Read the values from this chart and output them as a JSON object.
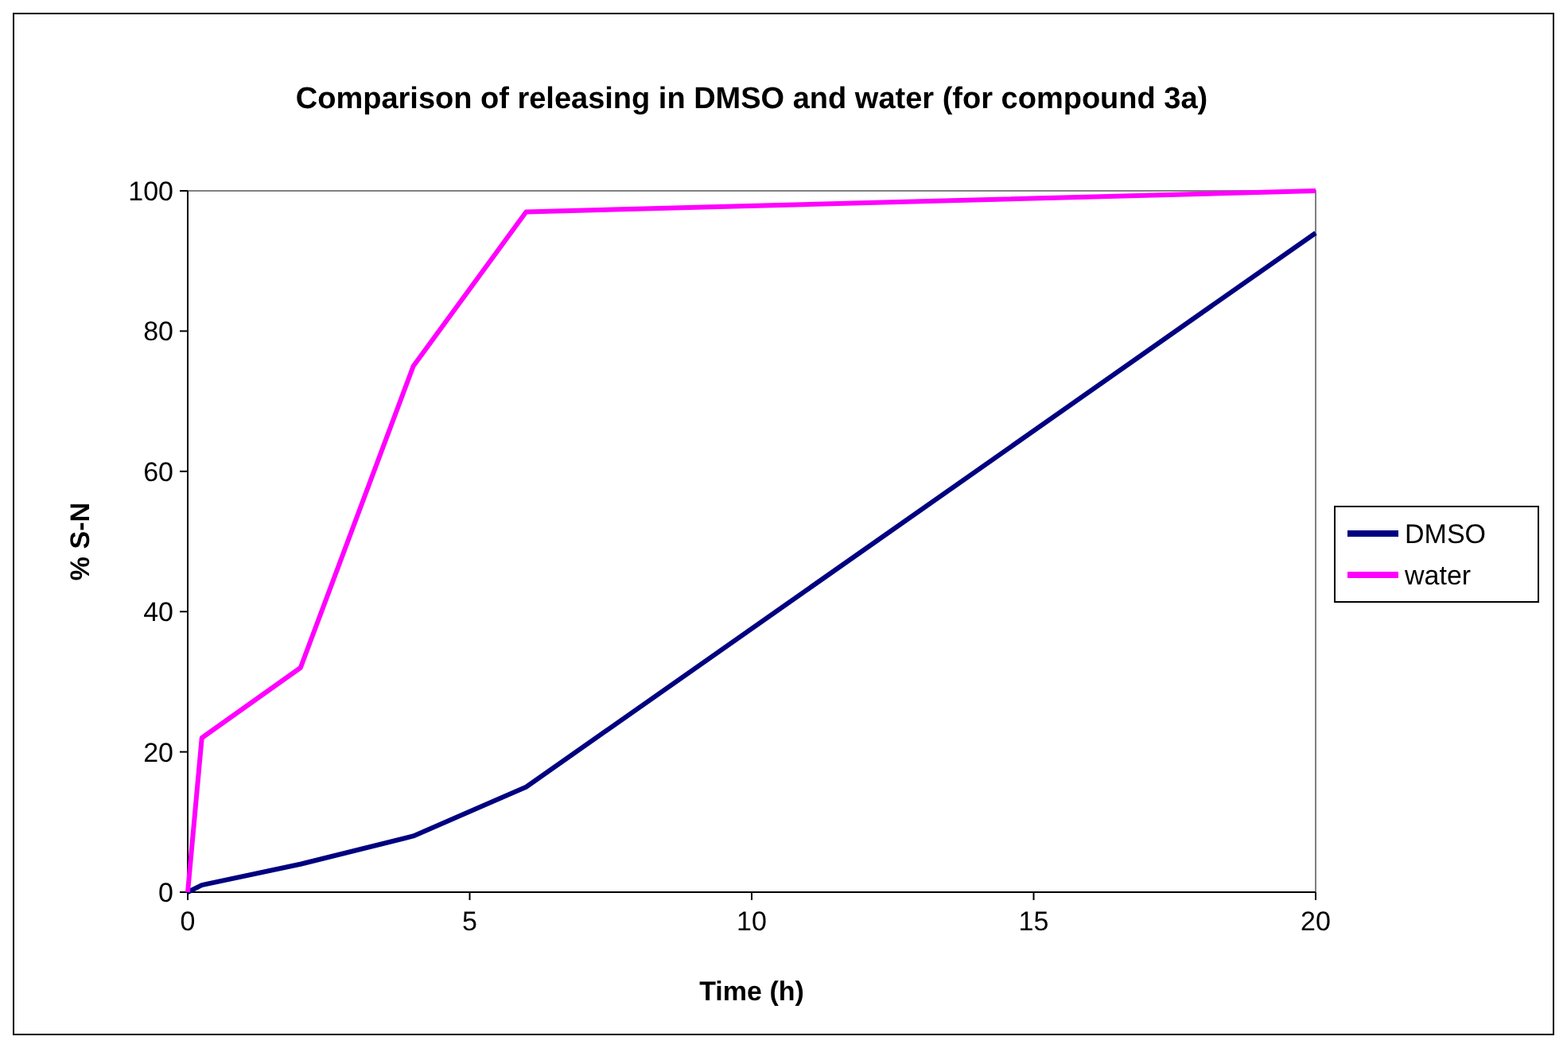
{
  "chart_data": {
    "type": "line",
    "title": "Comparison of releasing in DMSO and water (for compound 3a)",
    "xlabel": "Time (h)",
    "ylabel": "% S-N",
    "x": [
      0,
      0.25,
      2,
      4,
      6,
      20
    ],
    "series": [
      {
        "name": "DMSO",
        "color": "#000080",
        "values": [
          0,
          1,
          4,
          8,
          15,
          94
        ]
      },
      {
        "name": "water",
        "color": "#ff00ff",
        "values": [
          0,
          22,
          32,
          75,
          97,
          100
        ]
      }
    ],
    "xlim": [
      0,
      20
    ],
    "xticks": [
      0,
      5,
      10,
      15,
      20
    ],
    "ylim": [
      0,
      100
    ],
    "yticks": [
      0,
      20,
      40,
      60,
      80,
      100
    ],
    "legend": "right",
    "marker": "none",
    "line_style": "solid"
  }
}
